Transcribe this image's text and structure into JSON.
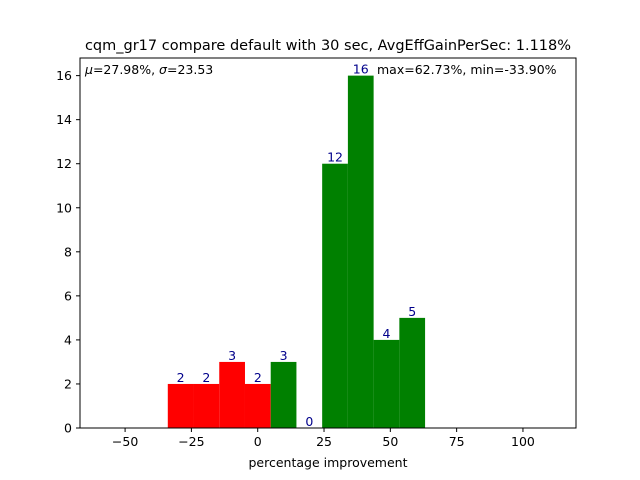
{
  "chart_data": {
    "type": "bar",
    "title": "cqm_gr17 compare default with 30 sec, AvgEffGainPerSec: 1.118%",
    "xlabel": "percentage improvement",
    "ylabel": "",
    "xlim": [
      -67,
      120
    ],
    "ylim": [
      0,
      16.8
    ],
    "xticks": [
      -50,
      -25,
      0,
      25,
      50,
      75,
      100
    ],
    "xtick_labels": [
      "−50",
      "−25",
      "0",
      "25",
      "50",
      "75",
      "100"
    ],
    "yticks": [
      0,
      2,
      4,
      6,
      8,
      10,
      12,
      14,
      16
    ],
    "ytick_labels": [
      "0",
      "2",
      "4",
      "6",
      "8",
      "10",
      "12",
      "14",
      "16"
    ],
    "bins": [
      {
        "x0": -33.9,
        "x1": -24.2,
        "value": 2,
        "label": "2",
        "color": "#ff0000"
      },
      {
        "x0": -24.2,
        "x1": -14.5,
        "value": 2,
        "label": "2",
        "color": "#ff0000"
      },
      {
        "x0": -14.5,
        "x1": -4.8,
        "value": 3,
        "label": "3",
        "color": "#ff0000"
      },
      {
        "x0": -4.8,
        "x1": 4.9,
        "value": 2,
        "label": "2",
        "color": "#ff0000"
      },
      {
        "x0": 4.9,
        "x1": 14.6,
        "value": 3,
        "label": "3",
        "color": "#008000"
      },
      {
        "x0": 14.6,
        "x1": 24.3,
        "value": 0,
        "label": "0",
        "color": "#008000"
      },
      {
        "x0": 24.3,
        "x1": 34.0,
        "value": 12,
        "label": "12",
        "color": "#008000"
      },
      {
        "x0": 34.0,
        "x1": 43.7,
        "value": 16,
        "label": "16",
        "color": "#008000"
      },
      {
        "x0": 43.7,
        "x1": 53.4,
        "value": 4,
        "label": "4",
        "color": "#008000"
      },
      {
        "x0": 53.4,
        "x1": 63.1,
        "value": 5,
        "label": "5",
        "color": "#008000"
      }
    ],
    "annotations": {
      "stats_left_mu": "μ",
      "stats_left_mu_value": "=27.98%, ",
      "stats_left_sigma": "σ",
      "stats_left_sigma_value": "=23.53",
      "stats_right": "max=62.73%, min=-33.90%"
    },
    "colors": {
      "negative": "#ff0000",
      "positive": "#008000",
      "bar_label": "#00008b"
    },
    "grid": false
  }
}
